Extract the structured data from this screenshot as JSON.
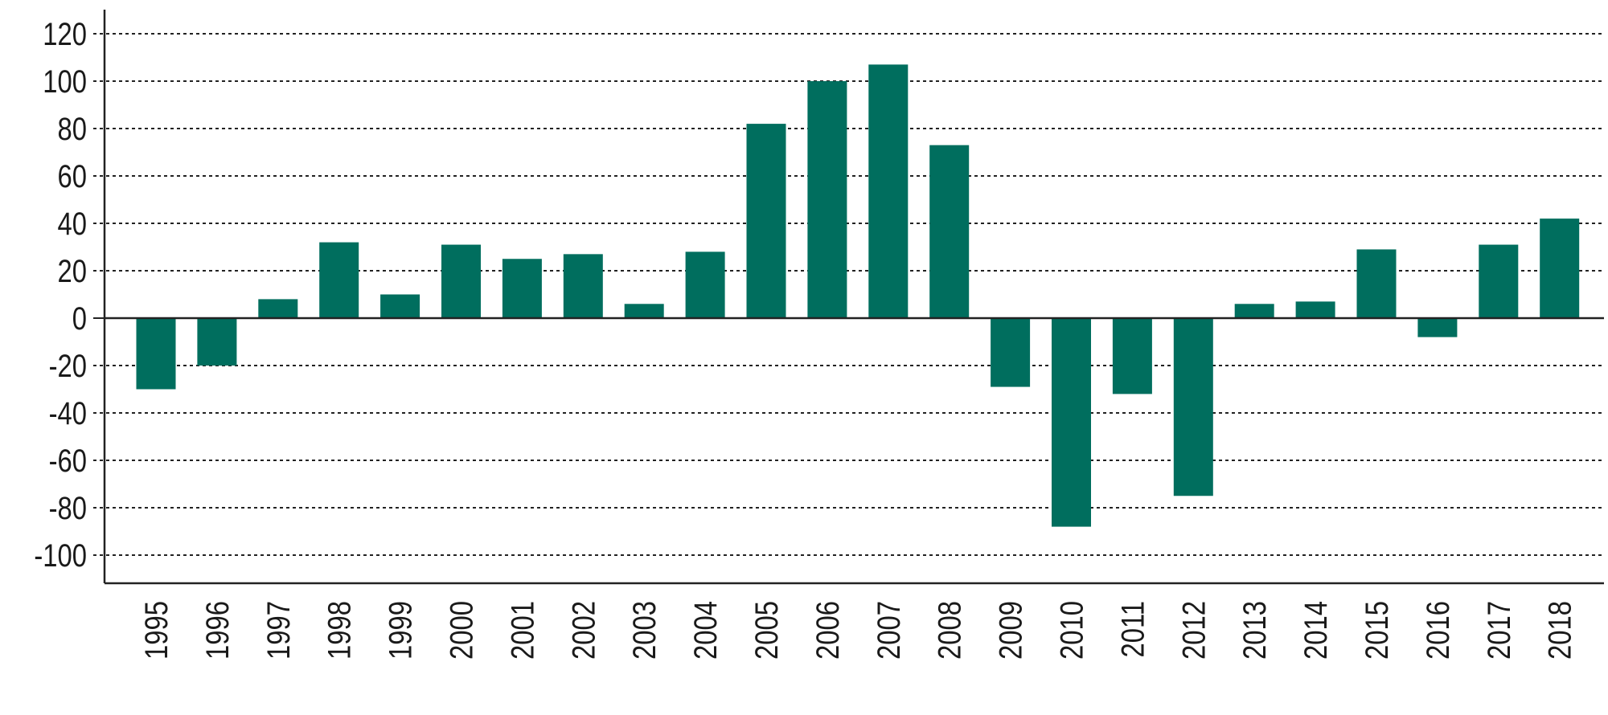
{
  "chart_data": {
    "type": "bar",
    "title": "",
    "xlabel": "",
    "ylabel": "",
    "categories": [
      "1995",
      "1996",
      "1997",
      "1998",
      "1999",
      "2000",
      "2001",
      "2002",
      "2003",
      "2004",
      "2005",
      "2006",
      "2007",
      "2008",
      "2009",
      "2010",
      "2011",
      "2012",
      "2013",
      "2014",
      "2015",
      "2016",
      "2017",
      "2018"
    ],
    "values": [
      -30,
      -20,
      8,
      32,
      10,
      31,
      25,
      27,
      6,
      28,
      82,
      100,
      107,
      73,
      -29,
      -88,
      -32,
      -75,
      6,
      7,
      29,
      -8,
      31,
      42
    ],
    "ylim": [
      -110,
      130
    ],
    "yticks": [
      120,
      100,
      80,
      60,
      40,
      20,
      0,
      -20,
      -40,
      -60,
      -80,
      -100
    ],
    "grid": true,
    "grid_style": "dotted",
    "legend": "none",
    "colors": {
      "bar": "#006e5e",
      "grid": "#222222",
      "axis": "#222222"
    }
  }
}
